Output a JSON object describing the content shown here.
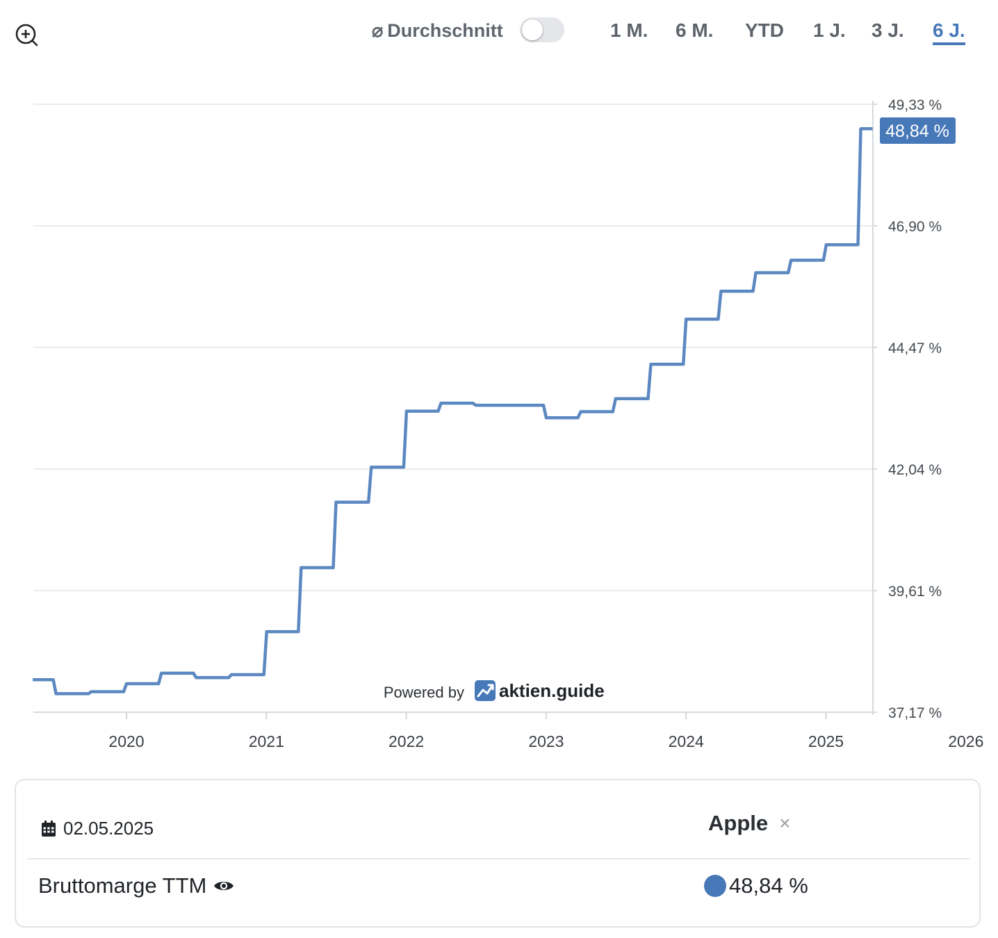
{
  "toolbar": {
    "avg_symbol": "⌀",
    "avg_label": "Durchschnitt",
    "avg_enabled": false,
    "ranges": [
      "1 M.",
      "6 M.",
      "YTD",
      "1 J.",
      "3 J.",
      "6 J."
    ],
    "active_range": "6 J."
  },
  "chart_data": {
    "type": "line",
    "step": true,
    "x_ticks": [
      "2020",
      "2021",
      "2022",
      "2023",
      "2024",
      "2025",
      "2026"
    ],
    "y_ticks": [
      "49,33 %",
      "46,90 %",
      "44,47 %",
      "42,04 %",
      "39,61 %",
      "37,17 %"
    ],
    "ylim": [
      37.17,
      49.33
    ],
    "xlim": [
      "2019-05-01",
      "2025-05-02"
    ],
    "grid": true,
    "last_value_label": "48,84 %",
    "series": [
      {
        "color": "#5b88c0",
        "points": [
          [
            "2019-05-01",
            37.82
          ],
          [
            "2019-07-01",
            37.54
          ],
          [
            "2019-10-01",
            37.58
          ],
          [
            "2020-01-01",
            37.74
          ],
          [
            "2020-04-01",
            37.95
          ],
          [
            "2020-07-01",
            37.86
          ],
          [
            "2020-10-01",
            37.92
          ],
          [
            "2021-01-01",
            38.78
          ],
          [
            "2021-04-01",
            40.06
          ],
          [
            "2021-07-01",
            41.37
          ],
          [
            "2021-10-01",
            42.07
          ],
          [
            "2022-01-01",
            43.19
          ],
          [
            "2022-04-01",
            43.35
          ],
          [
            "2022-07-01",
            43.31
          ],
          [
            "2023-01-01",
            43.06
          ],
          [
            "2023-04-01",
            43.18
          ],
          [
            "2023-07-01",
            43.44
          ],
          [
            "2023-10-01",
            44.13
          ],
          [
            "2024-01-01",
            45.03
          ],
          [
            "2024-04-01",
            45.59
          ],
          [
            "2024-07-01",
            45.96
          ],
          [
            "2024-10-01",
            46.21
          ],
          [
            "2025-01-01",
            46.52
          ],
          [
            "2025-04-01",
            48.84
          ],
          [
            "2025-05-02",
            48.84
          ]
        ]
      }
    ]
  },
  "watermark": {
    "powered_by": "Powered by",
    "brand": "aktien.guide"
  },
  "legend_card": {
    "date": "02.05.2025",
    "company": "Apple",
    "remove_symbol": "×",
    "metric": "Bruttomarge TTM",
    "value": "48,84 %",
    "series_color": "#4778b8"
  }
}
